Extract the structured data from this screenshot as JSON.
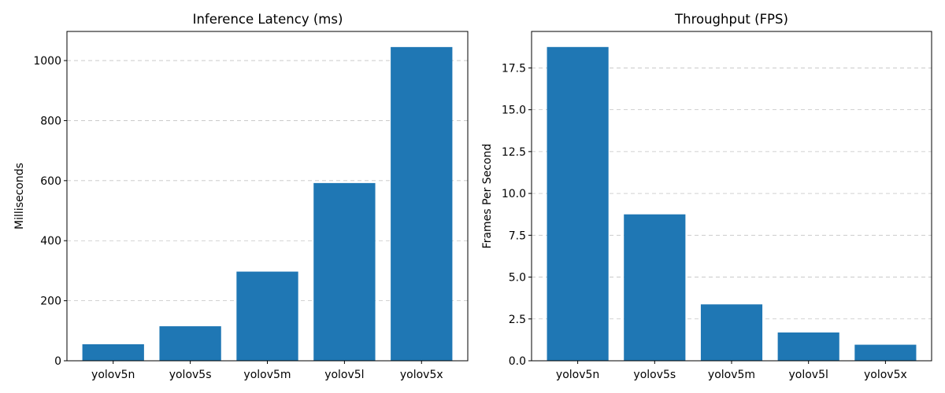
{
  "chart_data": [
    {
      "type": "bar",
      "title": "Inference Latency (ms)",
      "xlabel": "",
      "ylabel": "Milliseconds",
      "categories": [
        "yolov5n",
        "yolov5s",
        "yolov5m",
        "yolov5l",
        "yolov5x"
      ],
      "values": [
        55,
        115,
        297,
        592,
        1045
      ],
      "ylim": [
        0,
        1097
      ],
      "yticks": [
        0,
        200,
        400,
        600,
        800,
        1000
      ],
      "ytick_labels": [
        "0",
        "200",
        "400",
        "600",
        "800",
        "1000"
      ],
      "grid": "y",
      "bar_color": "#1f77b4"
    },
    {
      "type": "bar",
      "title": "Throughput (FPS)",
      "xlabel": "",
      "ylabel": "Frames Per Second",
      "categories": [
        "yolov5n",
        "yolov5s",
        "yolov5m",
        "yolov5l",
        "yolov5x"
      ],
      "values": [
        18.75,
        8.75,
        3.37,
        1.69,
        0.96
      ],
      "ylim": [
        0,
        19.68
      ],
      "yticks": [
        0,
        2.5,
        5,
        7.5,
        10,
        12.5,
        15,
        17.5
      ],
      "ytick_labels": [
        "0.0",
        "2.5",
        "5.0",
        "7.5",
        "10.0",
        "12.5",
        "15.0",
        "17.5"
      ],
      "grid": "y",
      "bar_color": "#1f77b4"
    }
  ]
}
